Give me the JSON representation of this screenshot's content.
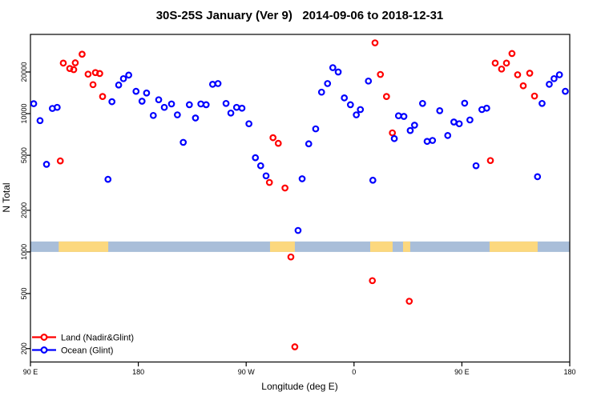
{
  "chart_data": {
    "type": "scatter",
    "title": "30S-25S January (Ver 9)   2014-09-06 to 2018-12-31",
    "xlabel": "Longitude (deg E)",
    "ylabel": "N Total",
    "x_axis": {
      "lim": [
        90,
        540
      ],
      "ticks": [
        {
          "value": 90,
          "label": "90 E"
        },
        {
          "value": 180,
          "label": "180"
        },
        {
          "value": 270,
          "label": "90 W"
        },
        {
          "value": 360,
          "label": "0"
        },
        {
          "value": 450,
          "label": "90 E"
        },
        {
          "value": 540,
          "label": "180"
        }
      ]
    },
    "y_axis": {
      "scale": "log",
      "lim": [
        160,
        37400
      ],
      "ticks": [
        {
          "value": 200,
          "label": "200"
        },
        {
          "value": 500,
          "label": "500"
        },
        {
          "value": 1000,
          "label": "1000"
        },
        {
          "value": 2000,
          "label": "2000"
        },
        {
          "value": 5000,
          "label": "5000"
        },
        {
          "value": 10000,
          "label": "10000"
        },
        {
          "value": 20000,
          "label": "20000"
        }
      ]
    },
    "legend": [
      {
        "label": "Land (Nadir&Glint)",
        "color": "#ff0000"
      },
      {
        "label": "Ocean (Glint)",
        "color": "#0000ff"
      }
    ],
    "band": {
      "description": "surface-type strip: ocean background with land longitude segments",
      "n_range": [
        1000,
        1190
      ],
      "ocean_color": "#a9bed9",
      "land_color": "#fcd87e",
      "land_segments_deg_e": [
        [
          113.6,
          154.9
        ],
        [
          289.9,
          310.6
        ],
        [
          373.5,
          392.2
        ],
        [
          400.9,
          406.9
        ],
        [
          473.1,
          513.2
        ]
      ]
    },
    "series": [
      {
        "name": "Land (Nadir&Glint)",
        "color": "#ff0000",
        "points": [
          [
            117.4,
            23200
          ],
          [
            122.8,
            21200
          ],
          [
            126.1,
            20800
          ],
          [
            127.4,
            23300
          ],
          [
            133.1,
            26900
          ],
          [
            138.1,
            19300
          ],
          [
            144.2,
            19800
          ],
          [
            147.8,
            19500
          ],
          [
            142.2,
            16200
          ],
          [
            150.2,
            13300
          ],
          [
            114.9,
            4550
          ],
          [
            292.4,
            6700
          ],
          [
            296.8,
            6100
          ],
          [
            289.4,
            3180
          ],
          [
            302.4,
            2900
          ],
          [
            307.3,
            920
          ],
          [
            310.6,
            206
          ],
          [
            375.3,
            620
          ],
          [
            406.1,
            440
          ],
          [
            377.5,
            32500
          ],
          [
            382.0,
            19200
          ],
          [
            387.1,
            13300
          ],
          [
            392.0,
            7260
          ],
          [
            473.8,
            4580
          ],
          [
            477.8,
            23200
          ],
          [
            483.1,
            21000
          ],
          [
            487.2,
            23200
          ],
          [
            491.8,
            27200
          ],
          [
            496.5,
            19100
          ],
          [
            506.6,
            19600
          ],
          [
            501.2,
            15900
          ],
          [
            510.6,
            13400
          ]
        ]
      },
      {
        "name": "Ocean (Glint)",
        "color": "#0000ff",
        "points": [
          [
            92.7,
            11800
          ],
          [
            98.0,
            8900
          ],
          [
            103.4,
            4300
          ],
          [
            108.3,
            10900
          ],
          [
            112.3,
            11100
          ],
          [
            154.7,
            3350
          ],
          [
            158.0,
            12200
          ],
          [
            163.6,
            16100
          ],
          [
            167.6,
            17900
          ],
          [
            172.0,
            19000
          ],
          [
            178.1,
            14500
          ],
          [
            183.1,
            12300
          ],
          [
            186.9,
            14100
          ],
          [
            192.5,
            9700
          ],
          [
            197.0,
            12600
          ],
          [
            201.7,
            11100
          ],
          [
            207.7,
            11750
          ],
          [
            212.6,
            9800
          ],
          [
            217.5,
            6200
          ],
          [
            222.6,
            11600
          ],
          [
            227.7,
            9300
          ],
          [
            232.2,
            11750
          ],
          [
            236.6,
            11600
          ],
          [
            242.0,
            16300
          ],
          [
            246.5,
            16500
          ],
          [
            253.2,
            11850
          ],
          [
            257.2,
            10100
          ],
          [
            262.0,
            11100
          ],
          [
            266.5,
            10950
          ],
          [
            272.3,
            8450
          ],
          [
            277.7,
            4800
          ],
          [
            282.1,
            4200
          ],
          [
            286.6,
            3550
          ],
          [
            316.7,
            3380
          ],
          [
            313.3,
            1430
          ],
          [
            322.2,
            6050
          ],
          [
            328.0,
            7760
          ],
          [
            332.9,
            14300
          ],
          [
            337.9,
            16500
          ],
          [
            342.3,
            21500
          ],
          [
            346.8,
            20000
          ],
          [
            351.9,
            13000
          ],
          [
            357.0,
            11600
          ],
          [
            361.9,
            9800
          ],
          [
            365.3,
            10700
          ],
          [
            372.0,
            17200
          ],
          [
            375.7,
            3300
          ],
          [
            393.6,
            6600
          ],
          [
            397.1,
            9650
          ],
          [
            401.6,
            9550
          ],
          [
            406.9,
            7550
          ],
          [
            410.5,
            8250
          ],
          [
            417.2,
            11850
          ],
          [
            421.0,
            6300
          ],
          [
            425.5,
            6400
          ],
          [
            431.5,
            10500
          ],
          [
            438.2,
            6950
          ],
          [
            443.3,
            8700
          ],
          [
            447.8,
            8450
          ],
          [
            452.3,
            11900
          ],
          [
            456.7,
            9000
          ],
          [
            461.8,
            4200
          ],
          [
            466.7,
            10700
          ],
          [
            470.7,
            10950
          ],
          [
            513.1,
            3500
          ],
          [
            516.9,
            11850
          ],
          [
            522.9,
            16300
          ],
          [
            526.9,
            17900
          ],
          [
            531.4,
            19100
          ],
          [
            536.3,
            14500
          ]
        ]
      }
    ]
  }
}
